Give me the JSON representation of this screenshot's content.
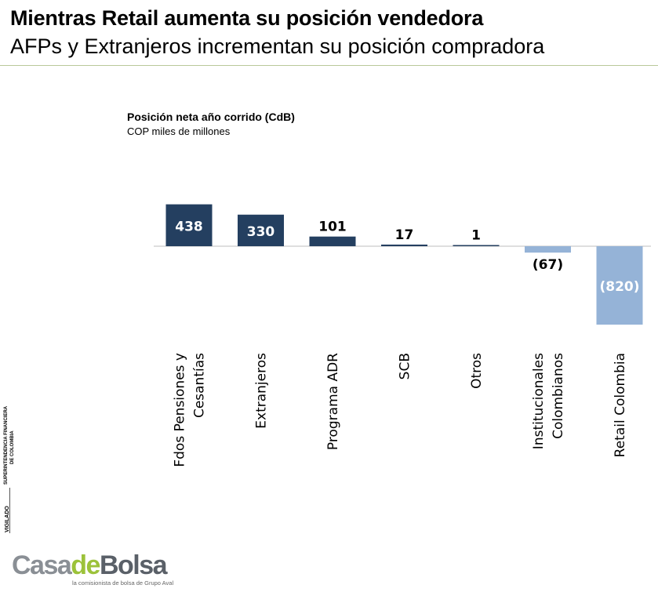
{
  "header": {
    "title": "Mientras Retail aumenta su posición vendedora",
    "subtitle": "AFPs y Extranjeros incrementan su posición compradora"
  },
  "chart_data": {
    "type": "bar",
    "title": "Posición neta año corrido (CdB)",
    "subtitle": "COP miles de millones",
    "categories": [
      "Fdos Pensiones y Cesantías",
      "Extranjeros",
      "Programa ADR",
      "SCB",
      "Otros",
      "Institucionales Colombianos",
      "Retail Colombia"
    ],
    "category_lines": [
      [
        "Fdos Pensiones y",
        "Cesantías"
      ],
      [
        "Extranjeros"
      ],
      [
        "Programa ADR"
      ],
      [
        "SCB"
      ],
      [
        "Otros"
      ],
      [
        "Institucionales",
        "Colombianos"
      ],
      [
        "Retail Colombia"
      ]
    ],
    "values": [
      438,
      330,
      101,
      17,
      1,
      -67,
      -820
    ],
    "data_labels": [
      "438",
      "330",
      "101",
      "17",
      "1",
      "(67)",
      "(820)"
    ],
    "xlabel": "",
    "ylabel": "",
    "grid": false,
    "legend": "none",
    "colors": {
      "positive": "#243f60",
      "negative": "#95b3d7",
      "baseline": "#bfbfbf"
    }
  },
  "watermark": {
    "vigilado": "VIGILADO",
    "entity_line1": "SUPERINTENDENCIA FINANCIERA",
    "entity_line2": "DE COLOMBIA"
  },
  "logo": {
    "part1": "Casa",
    "part2": "de",
    "part3": "Bolsa",
    "tagline": "la comisionista de bolsa de Grupo Aval"
  }
}
